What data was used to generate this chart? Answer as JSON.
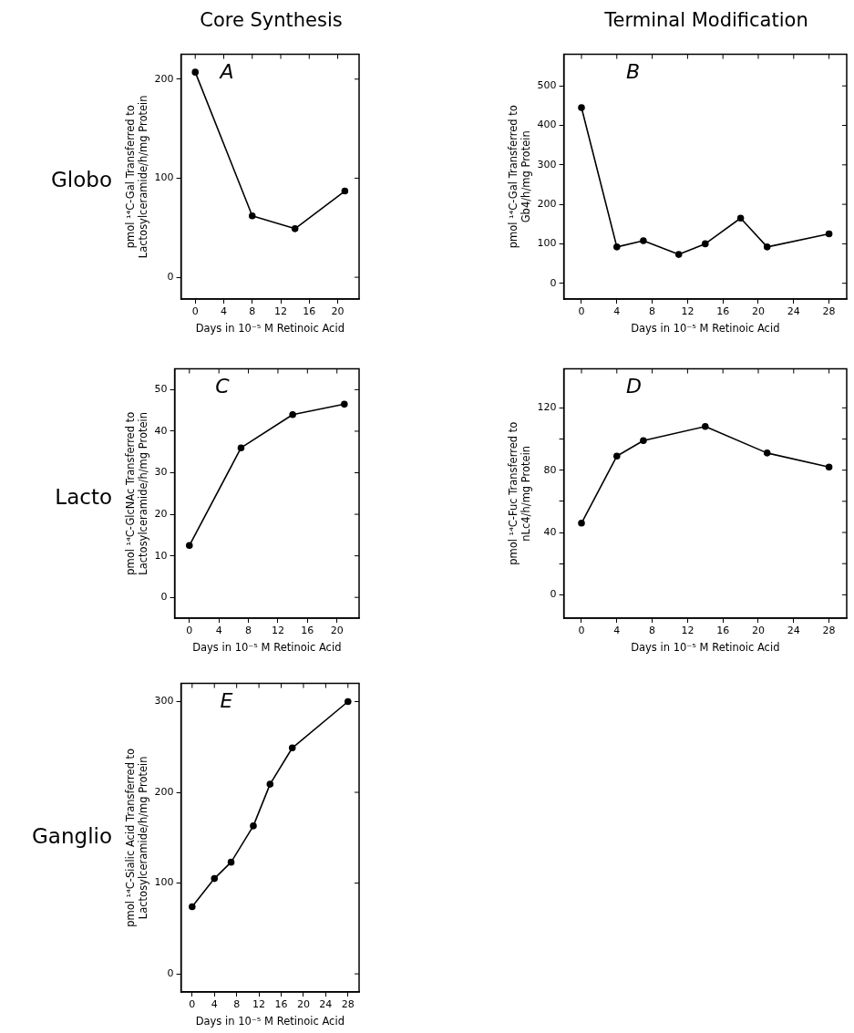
{
  "chart_data": [
    {
      "type": "line",
      "title": "Core Synthesis",
      "annotations": [
        "A",
        "Globo"
      ],
      "xlabel": "Days in 10⁻⁵ M Retinoic Acid",
      "ylabel": "pmol ¹⁴C-Gal Transferred to\nLactosylceramide/h/mg Protein",
      "x": [
        0,
        8,
        14,
        21
      ],
      "series": [
        {
          "color": "#000000",
          "values": [
            207,
            62,
            49,
            87
          ]
        }
      ],
      "xlim": [
        -2,
        23
      ],
      "xticks": [
        0,
        4,
        8,
        12,
        16,
        20
      ],
      "ylim": [
        -22,
        225
      ],
      "yticks": [
        0,
        100,
        200
      ],
      "grid": false,
      "legend": false,
      "marker": "circle",
      "line_style": "solid"
    },
    {
      "type": "line",
      "title": "Terminal Modification",
      "annotations": [
        "B"
      ],
      "xlabel": "Days in 10⁻⁵ M Retinoic Acid",
      "ylabel": "pmol ¹⁴C-Gal Transferred to\nGb4/h/mg Protein",
      "x": [
        0,
        4,
        7,
        11,
        14,
        18,
        21,
        28
      ],
      "series": [
        {
          "color": "#000000",
          "values": [
            445,
            92,
            108,
            73,
            100,
            165,
            92,
            125
          ]
        }
      ],
      "xlim": [
        -2,
        30
      ],
      "xticks": [
        0,
        4,
        8,
        12,
        16,
        20,
        24,
        28
      ],
      "ylim": [
        -40,
        580
      ],
      "yticks": [
        0,
        100,
        200,
        300,
        400,
        500
      ],
      "grid": false,
      "legend": false,
      "marker": "circle",
      "line_style": "solid"
    },
    {
      "type": "line",
      "annotations": [
        "C",
        "Lacto"
      ],
      "xlabel": "Days in 10⁻⁵ M Retinoic Acid",
      "ylabel": "pmol ¹⁴C-GlcNAc Transferred to\nLactosylceramide/h/mg Protein",
      "x": [
        0,
        7,
        14,
        21
      ],
      "series": [
        {
          "color": "#000000",
          "values": [
            12.5,
            36,
            44,
            46.5
          ]
        }
      ],
      "xlim": [
        -2,
        23
      ],
      "xticks": [
        0,
        4,
        8,
        12,
        16,
        20
      ],
      "ylim": [
        -5,
        55
      ],
      "yticks": [
        0,
        10,
        20,
        30,
        40,
        50
      ],
      "grid": false,
      "legend": false,
      "marker": "circle",
      "line_style": "solid"
    },
    {
      "type": "line",
      "annotations": [
        "D"
      ],
      "xlabel": "Days in 10⁻⁵ M Retinoic Acid",
      "ylabel": "pmol ¹⁴C-Fuc Transferred to\nnLc4/h/mg Protein",
      "x": [
        0,
        4,
        7,
        14,
        21,
        28
      ],
      "series": [
        {
          "color": "#000000",
          "values": [
            46,
            89,
            99,
            108,
            91,
            82
          ]
        }
      ],
      "xlim": [
        -2,
        30
      ],
      "xticks": [
        0,
        4,
        8,
        12,
        16,
        20,
        24,
        28
      ],
      "ylim": [
        -15,
        145
      ],
      "yticks": [
        0,
        {
          "value": 20,
          "label": null
        },
        40,
        {
          "value": 60,
          "label": null
        },
        80,
        {
          "value": 100,
          "label": null
        },
        120
      ],
      "grid": false,
      "legend": false,
      "marker": "circle",
      "line_style": "solid"
    },
    {
      "type": "line",
      "annotations": [
        "E",
        "Ganglio"
      ],
      "xlabel": "Days in 10⁻⁵ M Retinoic Acid",
      "ylabel": "pmol ¹⁴C-Sialic Acid Transferred to\nLactosylceramide/h/mg Protein",
      "x": [
        0,
        4,
        7,
        11,
        14,
        18,
        28
      ],
      "series": [
        {
          "color": "#000000",
          "values": [
            74,
            105,
            123,
            163,
            209,
            249,
            300
          ]
        }
      ],
      "xlim": [
        -2,
        30
      ],
      "xticks": [
        0,
        4,
        8,
        12,
        16,
        20,
        24,
        28
      ],
      "ylim": [
        -20,
        320
      ],
      "yticks": [
        0,
        100,
        200,
        300
      ],
      "grid": false,
      "legend": false,
      "marker": "circle",
      "line_style": "solid"
    }
  ]
}
